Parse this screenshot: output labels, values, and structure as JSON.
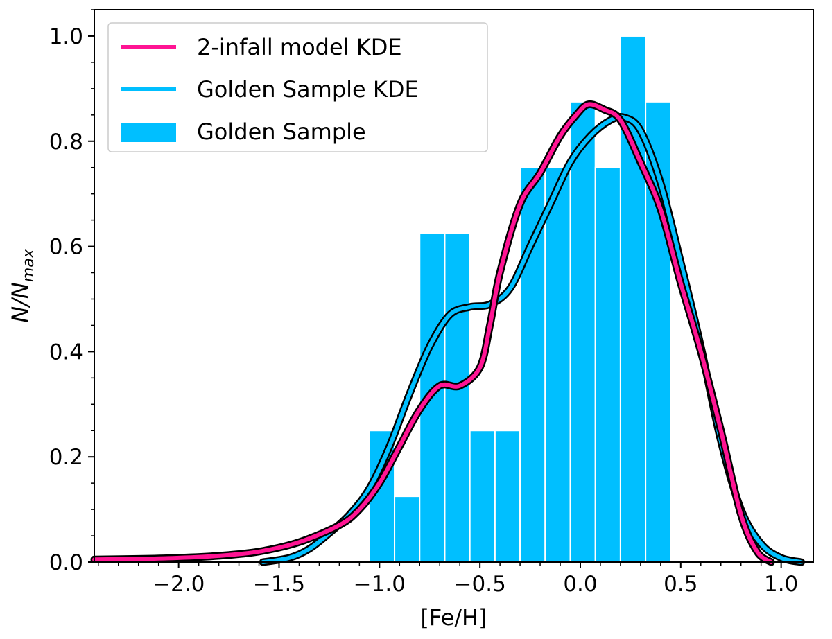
{
  "chart_data": {
    "type": "bar",
    "xlabel": "[Fe/H]",
    "ylabel_main": "N/N",
    "ylabel_sub": "max",
    "xlim": [
      -2.42,
      1.16
    ],
    "ylim": [
      0.0,
      1.05
    ],
    "xticks": [
      {
        "value": -2.0,
        "label": "−2.0"
      },
      {
        "value": -1.5,
        "label": "−1.5"
      },
      {
        "value": -1.0,
        "label": "−1.0"
      },
      {
        "value": -0.5,
        "label": "−0.5"
      },
      {
        "value": 0.0,
        "label": "0.0"
      },
      {
        "value": 0.5,
        "label": "0.5"
      },
      {
        "value": 1.0,
        "label": "1.0"
      }
    ],
    "yticks": [
      {
        "value": 0.0,
        "label": "0.0"
      },
      {
        "value": 0.2,
        "label": "0.2"
      },
      {
        "value": 0.4,
        "label": "0.4"
      },
      {
        "value": 0.6,
        "label": "0.6"
      },
      {
        "value": 0.8,
        "label": "0.8"
      },
      {
        "value": 1.0,
        "label": "1.0"
      }
    ],
    "xminor_step": 0.1,
    "yminor_step": 0.05,
    "grid": false,
    "legend_position": "top-left",
    "histogram": {
      "name": "Golden Sample",
      "color": "#00BFFF",
      "bin_edges": [
        -1.05,
        -0.925,
        -0.8,
        -0.675,
        -0.55,
        -0.425,
        -0.3,
        -0.175,
        -0.05,
        0.075,
        0.2,
        0.325,
        0.45
      ],
      "values": [
        0.25,
        0.125,
        0.625,
        0.625,
        0.25,
        0.25,
        0.75,
        0.75,
        0.875,
        0.75,
        1.0,
        0.875
      ]
    },
    "series": [
      {
        "name": "Golden Sample KDE",
        "color": "#00BFFF",
        "points": [
          [
            -1.58,
            0.0
          ],
          [
            -1.45,
            0.008
          ],
          [
            -1.35,
            0.025
          ],
          [
            -1.25,
            0.055
          ],
          [
            -1.15,
            0.09
          ],
          [
            -1.05,
            0.14
          ],
          [
            -0.95,
            0.22
          ],
          [
            -0.85,
            0.32
          ],
          [
            -0.75,
            0.41
          ],
          [
            -0.65,
            0.47
          ],
          [
            -0.55,
            0.485
          ],
          [
            -0.45,
            0.49
          ],
          [
            -0.35,
            0.52
          ],
          [
            -0.25,
            0.6
          ],
          [
            -0.15,
            0.68
          ],
          [
            -0.05,
            0.76
          ],
          [
            0.05,
            0.81
          ],
          [
            0.15,
            0.84
          ],
          [
            0.22,
            0.845
          ],
          [
            0.3,
            0.82
          ],
          [
            0.4,
            0.72
          ],
          [
            0.5,
            0.57
          ],
          [
            0.6,
            0.41
          ],
          [
            0.7,
            0.23
          ],
          [
            0.8,
            0.1
          ],
          [
            0.9,
            0.035
          ],
          [
            1.0,
            0.008
          ],
          [
            1.1,
            0.0
          ]
        ]
      },
      {
        "name": "2-infall model KDE",
        "color": "#FF1493",
        "points": [
          [
            -2.42,
            0.005
          ],
          [
            -2.2,
            0.006
          ],
          [
            -2.0,
            0.008
          ],
          [
            -1.8,
            0.012
          ],
          [
            -1.6,
            0.02
          ],
          [
            -1.4,
            0.038
          ],
          [
            -1.2,
            0.07
          ],
          [
            -1.1,
            0.1
          ],
          [
            -1.0,
            0.15
          ],
          [
            -0.9,
            0.22
          ],
          [
            -0.8,
            0.29
          ],
          [
            -0.7,
            0.335
          ],
          [
            -0.6,
            0.335
          ],
          [
            -0.5,
            0.37
          ],
          [
            -0.45,
            0.45
          ],
          [
            -0.4,
            0.55
          ],
          [
            -0.3,
            0.68
          ],
          [
            -0.2,
            0.74
          ],
          [
            -0.1,
            0.81
          ],
          [
            -0.02,
            0.85
          ],
          [
            0.04,
            0.87
          ],
          [
            0.12,
            0.86
          ],
          [
            0.2,
            0.84
          ],
          [
            0.3,
            0.76
          ],
          [
            0.4,
            0.67
          ],
          [
            0.5,
            0.53
          ],
          [
            0.6,
            0.4
          ],
          [
            0.7,
            0.25
          ],
          [
            0.8,
            0.09
          ],
          [
            0.88,
            0.02
          ],
          [
            0.95,
            0.0
          ]
        ]
      }
    ],
    "legend": [
      {
        "type": "line",
        "label": "2-infall model KDE",
        "color": "#FF1493"
      },
      {
        "type": "line",
        "label": "Golden Sample KDE",
        "color": "#00BFFF"
      },
      {
        "type": "patch",
        "label": "Golden Sample",
        "color": "#00BFFF"
      }
    ]
  }
}
